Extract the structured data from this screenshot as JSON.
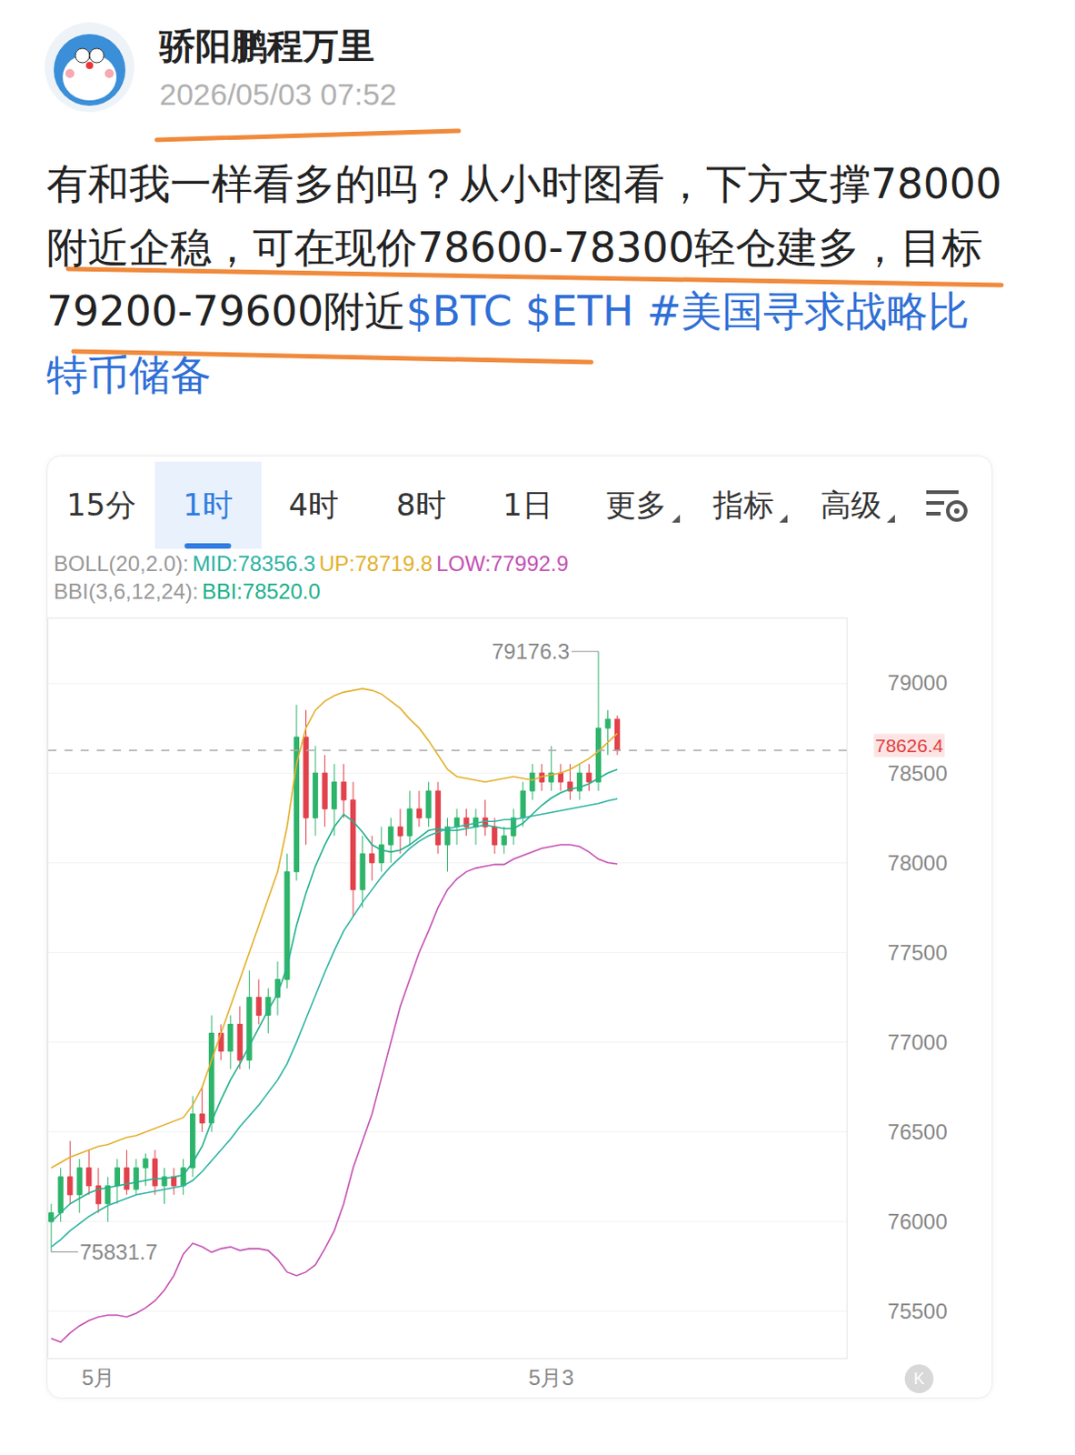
{
  "post": {
    "author": "骄阳鹏程万里",
    "time": "2026/05/03 07:52",
    "text": "有和我一样看多的吗？从小时图看，下方支撑78000附近企稳，可在现价78600-78300轻仓建多，目标79200-79600附近",
    "tags": [
      "$BTC",
      "$ETH",
      "#美国寻求战略比特币储备"
    ]
  },
  "tabs": [
    {
      "text": "15分"
    },
    {
      "text": "1时",
      "selected": true
    },
    {
      "text": "4时"
    },
    {
      "text": "8时"
    },
    {
      "text": "1日"
    },
    {
      "text": "更多",
      "menu": true
    },
    {
      "text": "指标",
      "menu": true
    },
    {
      "text": "高级",
      "menu": true
    }
  ],
  "kline_button": "K",
  "chart_data": {
    "type": "candlestick",
    "indicator_legend": [
      {
        "prefix": "BOLL(20,2.0):",
        "items": [
          {
            "text": "MID:78356.3",
            "color": "#2fb3a4"
          },
          {
            "text": "UP:78719.8",
            "color": "#e3b02c"
          },
          {
            "text": "LOW:77992.9",
            "color": "#c452b4"
          }
        ]
      },
      {
        "prefix": "BBI(3,6,12,24):",
        "items": [
          {
            "text": "BBI:78520.0",
            "color": "#22b08c"
          }
        ]
      }
    ],
    "categories": [
      null,
      null,
      null,
      null,
      null,
      "5月",
      null,
      null,
      null,
      null,
      null,
      null,
      null,
      null,
      null,
      null,
      null,
      null,
      null,
      null,
      null,
      null,
      null,
      null,
      null,
      null,
      null,
      null,
      null,
      null,
      null,
      null,
      null,
      null,
      null,
      null,
      null,
      null,
      null,
      null,
      null,
      null,
      null,
      null,
      null,
      null,
      null,
      null,
      null,
      null,
      null,
      null,
      null,
      "5月3",
      null,
      null,
      null,
      null,
      null,
      null,
      null
    ],
    "open": [
      76000,
      76050,
      76250,
      76150,
      76300,
      76200,
      76100,
      76200,
      76300,
      76180,
      76300,
      76350,
      76200,
      76250,
      76200,
      76300,
      76600,
      76550,
      77050,
      76950,
      77100,
      76900,
      77250,
      77150,
      77250,
      77350,
      77950,
      78700,
      78250,
      78500,
      78300,
      78450,
      78350,
      77850,
      78050,
      78000,
      78100,
      78200,
      78150,
      78300,
      78250,
      78400,
      78100,
      78200,
      78250,
      78200,
      78250,
      78200,
      78100,
      78150,
      78250,
      78400,
      78500,
      78450,
      78500,
      78450,
      78400,
      78500,
      78450,
      78750,
      78800
    ],
    "high": [
      76100,
      76300,
      76450,
      76350,
      76400,
      76300,
      76250,
      76350,
      76400,
      76350,
      76380,
      76400,
      76300,
      76300,
      76350,
      76700,
      76750,
      77150,
      77100,
      77150,
      77200,
      77400,
      77350,
      77300,
      77450,
      78050,
      78880,
      78850,
      78650,
      78600,
      78550,
      78550,
      78450,
      78150,
      78150,
      78200,
      78250,
      78300,
      78400,
      78400,
      78450,
      78450,
      78250,
      78300,
      78300,
      78300,
      78350,
      78250,
      78200,
      78300,
      78450,
      78550,
      78550,
      78650,
      78550,
      78550,
      78550,
      78550,
      79176.3,
      78850,
      78820
    ],
    "low": [
      75831.7,
      76000,
      76100,
      76050,
      76150,
      76050,
      76000,
      76100,
      76150,
      76150,
      76200,
      76150,
      76100,
      76150,
      76150,
      76250,
      76500,
      76500,
      76900,
      76850,
      76850,
      76850,
      77100,
      77050,
      77150,
      77300,
      77900,
      78100,
      78150,
      78200,
      78150,
      78250,
      77700,
      77750,
      77900,
      77950,
      78000,
      78050,
      78100,
      78200,
      78200,
      78050,
      77950,
      78100,
      78150,
      78100,
      78150,
      78050,
      78050,
      78100,
      78200,
      78350,
      78400,
      78400,
      78400,
      78350,
      78350,
      78400,
      78400,
      78600,
      78600
    ],
    "close": [
      76050,
      76250,
      76150,
      76300,
      76200,
      76100,
      76200,
      76300,
      76180,
      76300,
      76350,
      76200,
      76250,
      76200,
      76300,
      76600,
      76550,
      77050,
      76950,
      77100,
      76900,
      77250,
      77150,
      77250,
      77350,
      77950,
      78700,
      78250,
      78500,
      78300,
      78450,
      78350,
      77850,
      78050,
      78000,
      78100,
      78200,
      78150,
      78300,
      78250,
      78400,
      78100,
      78200,
      78250,
      78200,
      78250,
      78200,
      78100,
      78150,
      78250,
      78400,
      78500,
      78450,
      78500,
      78450,
      78400,
      78500,
      78450,
      78750,
      78800,
      78626.4
    ],
    "increasing_color": "#2db46a",
    "decreasing_color": "#e2414b",
    "series": [
      {
        "name": "UP",
        "color": "#e3b02c",
        "values": [
          76300,
          76330,
          76360,
          76380,
          76400,
          76420,
          76430,
          76450,
          76470,
          76480,
          76500,
          76520,
          76540,
          76560,
          76580,
          76650,
          76750,
          76900,
          77050,
          77200,
          77350,
          77500,
          77650,
          77800,
          77950,
          78200,
          78550,
          78750,
          78850,
          78900,
          78930,
          78950,
          78960,
          78970,
          78960,
          78940,
          78900,
          78860,
          78800,
          78750,
          78680,
          78600,
          78520,
          78480,
          78470,
          78460,
          78450,
          78460,
          78470,
          78480,
          78470,
          78460,
          78480,
          78490,
          78500,
          78520,
          78550,
          78580,
          78620,
          78670,
          78719.8
        ]
      },
      {
        "name": "MID",
        "color": "#2fb3a4",
        "values": [
          75860,
          75900,
          75950,
          75990,
          76030,
          76060,
          76090,
          76110,
          76130,
          76150,
          76160,
          76170,
          76180,
          76190,
          76200,
          76230,
          76280,
          76340,
          76400,
          76460,
          76530,
          76590,
          76650,
          76720,
          76790,
          76880,
          77000,
          77130,
          77260,
          77390,
          77510,
          77620,
          77700,
          77780,
          77850,
          77920,
          77980,
          78030,
          78080,
          78120,
          78150,
          78170,
          78190,
          78200,
          78210,
          78220,
          78230,
          78230,
          78240,
          78240,
          78250,
          78260,
          78270,
          78280,
          78290,
          78300,
          78310,
          78320,
          78330,
          78345,
          78356.3
        ]
      },
      {
        "name": "LOW",
        "color": "#c452b4",
        "values": [
          75350,
          75330,
          75380,
          75420,
          75450,
          75470,
          75480,
          75480,
          75470,
          75490,
          75520,
          75560,
          75620,
          75700,
          75820,
          75880,
          75860,
          75830,
          75850,
          75860,
          75840,
          75850,
          75850,
          75840,
          75790,
          75720,
          75700,
          75720,
          75760,
          75850,
          75950,
          76100,
          76300,
          76450,
          76600,
          76800,
          77000,
          77200,
          77350,
          77500,
          77620,
          77750,
          77850,
          77910,
          77950,
          77970,
          77980,
          77990,
          77990,
          78020,
          78040,
          78060,
          78080,
          78090,
          78100,
          78100,
          78090,
          78060,
          78020,
          78000,
          77992.9
        ]
      },
      {
        "name": "BBI",
        "color": "#22b08c",
        "values": [
          76000,
          76050,
          76100,
          76130,
          76160,
          76180,
          76190,
          76200,
          76210,
          76220,
          76230,
          76240,
          76240,
          76250,
          76260,
          76330,
          76420,
          76560,
          76680,
          76790,
          76880,
          76980,
          77080,
          77180,
          77270,
          77420,
          77650,
          77830,
          77980,
          78100,
          78200,
          78270,
          78230,
          78170,
          78100,
          78070,
          78060,
          78070,
          78100,
          78140,
          78180,
          78190,
          78180,
          78180,
          78190,
          78200,
          78210,
          78200,
          78190,
          78190,
          78220,
          78270,
          78320,
          78360,
          78390,
          78410,
          78420,
          78440,
          78470,
          78500,
          78520.0
        ]
      }
    ],
    "xlim": [
      -0.3,
      84.3
    ],
    "ylim": [
      75240,
      79360
    ],
    "yticks": [
      75500,
      76000,
      76500,
      77000,
      77500,
      78000,
      78500,
      79000
    ],
    "grid": true
  }
}
